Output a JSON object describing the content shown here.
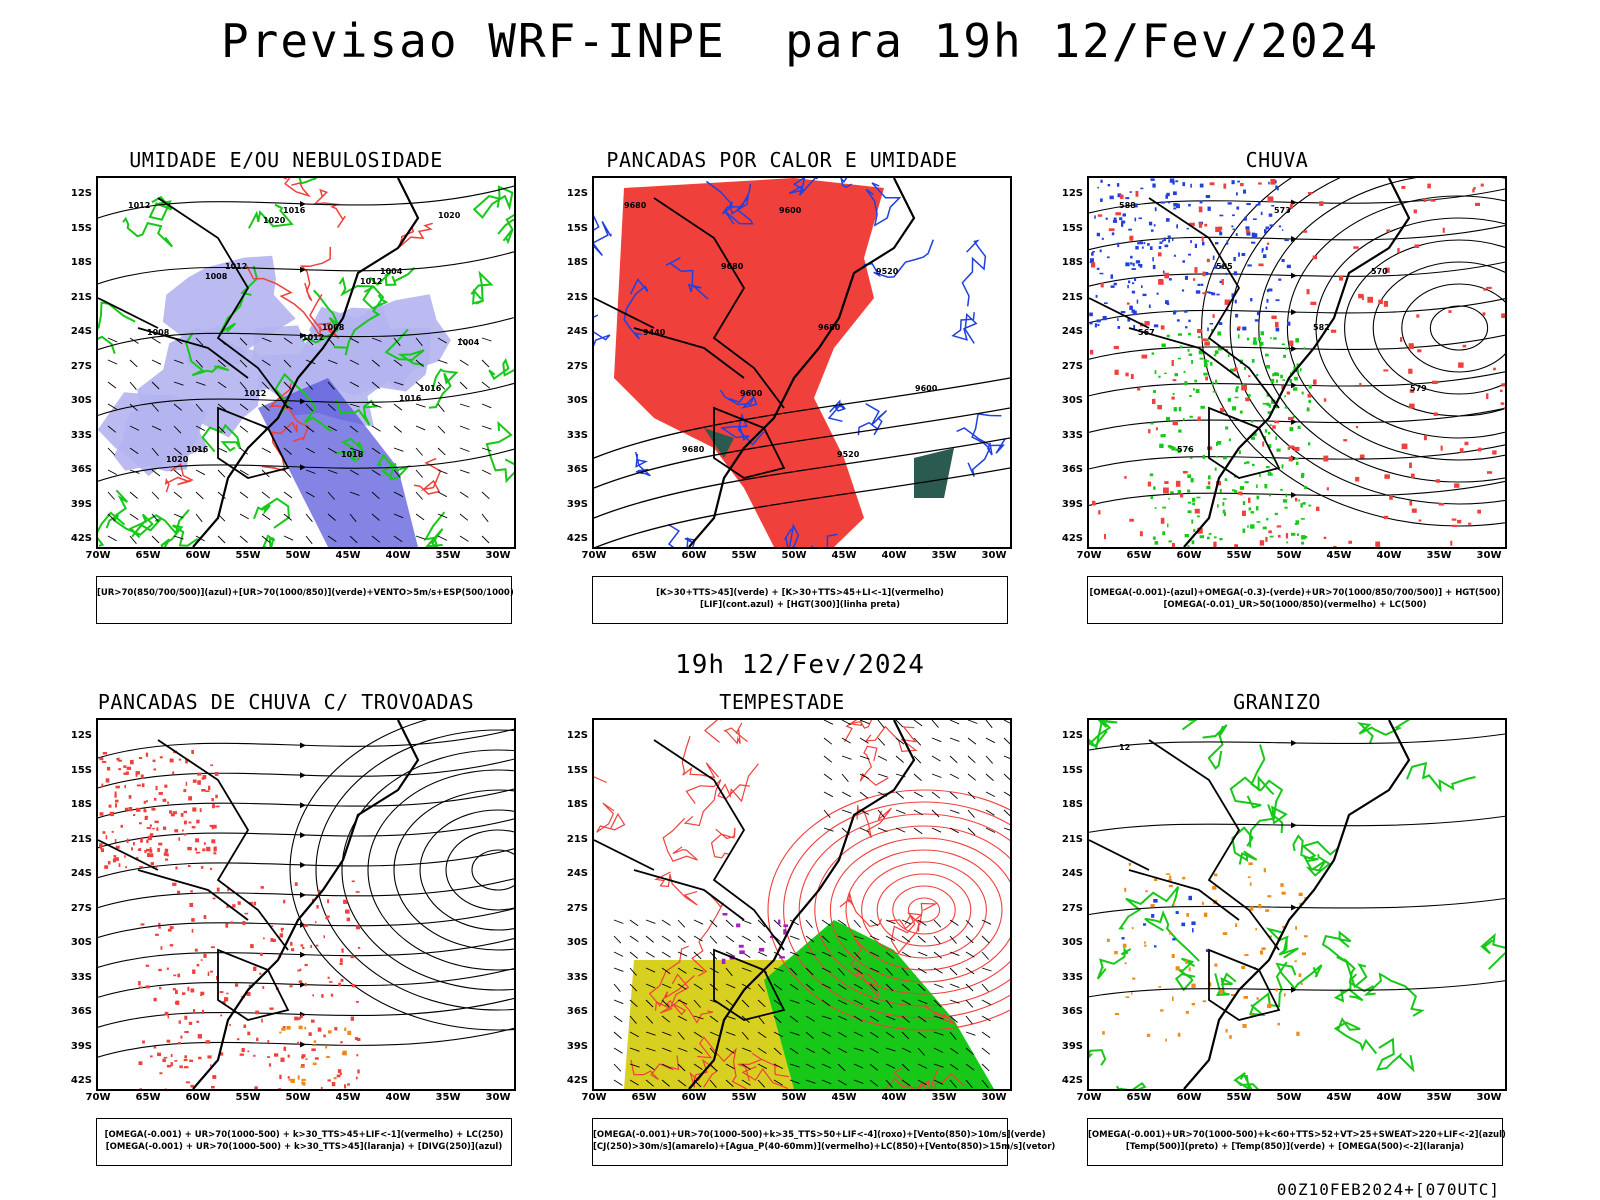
{
  "header": {
    "title": "Previsao WRF-INPE  para 19h 12/Fev/2024",
    "mid_title": "19h 12/Fev/2024",
    "footer": "00Z10FEB2024+[070UTC]"
  },
  "axes": {
    "lat_labels": [
      "12S",
      "15S",
      "18S",
      "21S",
      "24S",
      "27S",
      "30S",
      "33S",
      "36S",
      "39S",
      "42S"
    ],
    "lon_labels": [
      "70W",
      "65W",
      "60W",
      "55W",
      "50W",
      "45W",
      "40W",
      "35W",
      "30W"
    ]
  },
  "panels": [
    {
      "id": "umidade",
      "title": "UMIDADE E/OU NEBULOSIDADE",
      "legend_lines": [
        "[UR>70(850/700/500)](azul)+[UR>70(1000/850)](verde)+VENTO>5m/s+ESP(500/1000)"
      ],
      "contour_labels": [
        "1012",
        "1012",
        "1008",
        "1016",
        "1016",
        "1016",
        "1004",
        "1008",
        "1012",
        "1018",
        "1020",
        "1008",
        "1012",
        "1016",
        "1020",
        "1020",
        "1012",
        "1004"
      ]
    },
    {
      "id": "pancadas-calor",
      "title": "PANCADAS POR CALOR E UMIDADE",
      "legend_lines": [
        "[K>30+TTS>45](verde) + [K>30+TTS>45+LI<-1](vermelho)",
        "[LIF](cont.azul) + [HGT(300)](linha preta)"
      ],
      "contour_labels": [
        "9680",
        "9680",
        "9680",
        "9600",
        "9680",
        "9600",
        "9520",
        "9440",
        "9600",
        "9520"
      ]
    },
    {
      "id": "chuva",
      "title": "CHUVA",
      "legend_lines": [
        "[OMEGA(-0.001)-(azul)+OMEGA(-0.3)-(verde)+UR>70(1000/850/700/500)] + HGT(500)",
        "[OMEGA(-0.01)_UR>50(1000/850)(vermelho) + LC(500)"
      ],
      "contour_labels": [
        "588",
        "585",
        "582",
        "579",
        "576",
        "573",
        "570",
        "567"
      ]
    },
    {
      "id": "trovoadas",
      "title": "PANCADAS DE CHUVA C/ TROVOADAS",
      "legend_lines": [
        "[OMEGA(-0.001) + UR>70(1000-500) + k>30_TTS>45+LIF<-1](vermelho) + LC(250)",
        "[OMEGA(-0.001) + UR>70(1000-500) + k>30_TTS>45](laranja) + [DIVG(250)](azul)"
      ],
      "contour_labels": []
    },
    {
      "id": "tempestade",
      "title": "TEMPESTADE",
      "legend_lines": [
        "[OMEGA(-0.001)+UR>70(1000-500)+k>35_TTS>50+LIF<-4](roxo)+[Vento(850)>10m/s](verde)",
        "[CJ(250)>30m/s](amarelo)+[Agua_P(40-60mm)](vermelho)+LC(850)+[Vento(850)>15m/s](vetor)"
      ],
      "contour_labels": []
    },
    {
      "id": "granizo",
      "title": "GRANIZO",
      "legend_lines": [
        "[OMEGA(-0.001)+UR>70(1000-500)+k<60+TTS>52+VT>25+SWEAT>220+LIF<-2](azul)",
        "[Temp(500)](preto) + [Temp(850)](verde) + [OMEGA(500)<-2](laranja)"
      ],
      "contour_labels": [
        "12"
      ]
    }
  ],
  "colors": {
    "black": "#000000",
    "red": "#f0403c",
    "green": "#18c818",
    "blue": "#2040e0",
    "lavender": "#b4b4f0",
    "orange": "#ee8a1a",
    "yellow": "#d8d020",
    "purple": "#a020c0",
    "darkgreen": "#2a5a50"
  }
}
